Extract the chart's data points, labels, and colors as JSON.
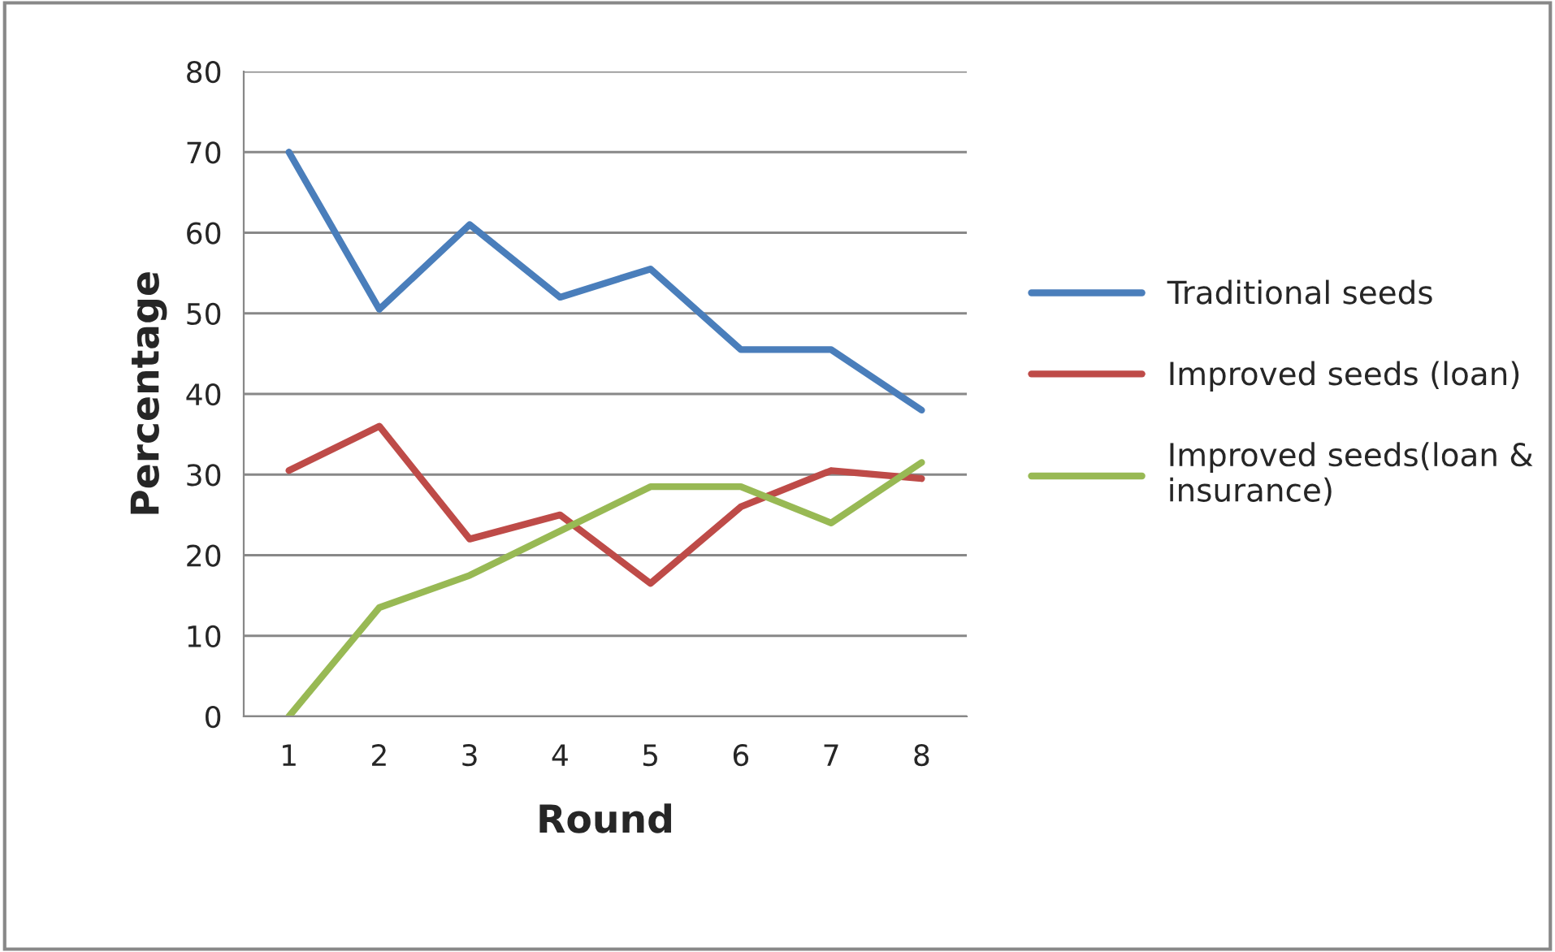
{
  "chart_data": {
    "type": "line",
    "xlabel": "Round",
    "ylabel": "Percentage",
    "categories": [
      "1",
      "2",
      "3",
      "4",
      "5",
      "6",
      "7",
      "8"
    ],
    "series": [
      {
        "name": "Traditional seeds",
        "color": "#4a7ebb",
        "values": [
          70,
          50.5,
          61,
          52,
          55.5,
          45.5,
          45.5,
          38
        ]
      },
      {
        "name": "Improved seeds (loan)",
        "color": "#be4b48",
        "values": [
          30.5,
          36,
          22,
          25,
          16.5,
          26,
          30.5,
          29.5
        ]
      },
      {
        "name": "Improved seeds(loan & insurance)",
        "color": "#98b954",
        "values": [
          0,
          13.5,
          17.5,
          23,
          28.5,
          28.5,
          24,
          31.5
        ]
      }
    ],
    "ylim": [
      0,
      80
    ],
    "yticks": [
      0,
      10,
      20,
      30,
      40,
      50,
      60,
      70,
      80
    ],
    "grid": "y",
    "legend": "right",
    "marker": "none",
    "line_style": "solid"
  }
}
